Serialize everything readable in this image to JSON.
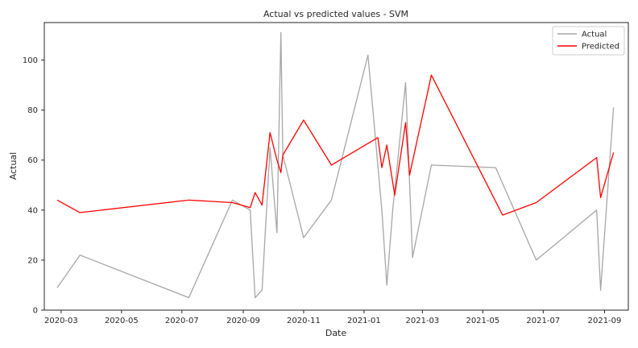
{
  "chart_data": {
    "type": "line",
    "title": "Actual vs predicted values - SVM",
    "xlabel": "Date",
    "ylabel": "Actual",
    "xlim": [
      "2020-02-13",
      "2021-09-25"
    ],
    "ylim": [
      0,
      115
    ],
    "x_ticks": [
      "2020-03-01",
      "2020-05-01",
      "2020-07-01",
      "2020-09-01",
      "2020-11-01",
      "2021-01-01",
      "2021-03-01",
      "2021-05-01",
      "2021-07-01",
      "2021-09-01"
    ],
    "x_tick_labels": [
      "2020-03",
      "2020-05",
      "2020-07",
      "2020-09",
      "2020-11",
      "2021-01",
      "2021-03",
      "2021-05",
      "2021-07",
      "2021-09"
    ],
    "y_ticks": [
      0,
      20,
      40,
      60,
      80,
      100
    ],
    "grid": false,
    "legend": "top-right",
    "series": [
      {
        "name": "Actual",
        "color": "#a6a6a6",
        "points": [
          [
            "2020-02-26",
            9
          ],
          [
            "2020-03-20",
            22
          ],
          [
            "2020-07-08",
            5
          ],
          [
            "2020-08-21",
            44
          ],
          [
            "2020-09-08",
            40
          ],
          [
            "2020-09-13",
            5
          ],
          [
            "2020-09-20",
            8
          ],
          [
            "2020-09-28",
            65
          ],
          [
            "2020-10-05",
            31
          ],
          [
            "2020-10-09",
            111
          ],
          [
            "2020-10-11",
            62
          ],
          [
            "2020-11-01",
            29
          ],
          [
            "2020-11-29",
            44
          ],
          [
            "2021-01-05",
            102
          ],
          [
            "2021-01-19",
            40
          ],
          [
            "2021-01-24",
            10
          ],
          [
            "2021-01-30",
            40
          ],
          [
            "2021-02-12",
            91
          ],
          [
            "2021-02-19",
            21
          ],
          [
            "2021-03-10",
            58
          ],
          [
            "2021-05-14",
            57
          ],
          [
            "2021-06-24",
            20
          ],
          [
            "2021-08-24",
            40
          ],
          [
            "2021-08-28",
            8
          ],
          [
            "2021-09-10",
            81
          ]
        ]
      },
      {
        "name": "Predicted",
        "color": "#ff0000",
        "points": [
          [
            "2020-02-26",
            44
          ],
          [
            "2020-03-20",
            39
          ],
          [
            "2020-07-08",
            44
          ],
          [
            "2020-08-21",
            43
          ],
          [
            "2020-09-08",
            41
          ],
          [
            "2020-09-13",
            47
          ],
          [
            "2020-09-20",
            42
          ],
          [
            "2020-09-28",
            71
          ],
          [
            "2020-10-05",
            60
          ],
          [
            "2020-10-09",
            55
          ],
          [
            "2020-10-11",
            62
          ],
          [
            "2020-11-01",
            76
          ],
          [
            "2020-11-29",
            58
          ],
          [
            "2021-01-15",
            69
          ],
          [
            "2021-01-19",
            57
          ],
          [
            "2021-01-24",
            66
          ],
          [
            "2021-02-01",
            46
          ],
          [
            "2021-02-12",
            75
          ],
          [
            "2021-02-16",
            54
          ],
          [
            "2021-03-10",
            94
          ],
          [
            "2021-05-21",
            38
          ],
          [
            "2021-06-24",
            43
          ],
          [
            "2021-08-24",
            61
          ],
          [
            "2021-08-28",
            45
          ],
          [
            "2021-09-10",
            63
          ]
        ]
      }
    ]
  }
}
